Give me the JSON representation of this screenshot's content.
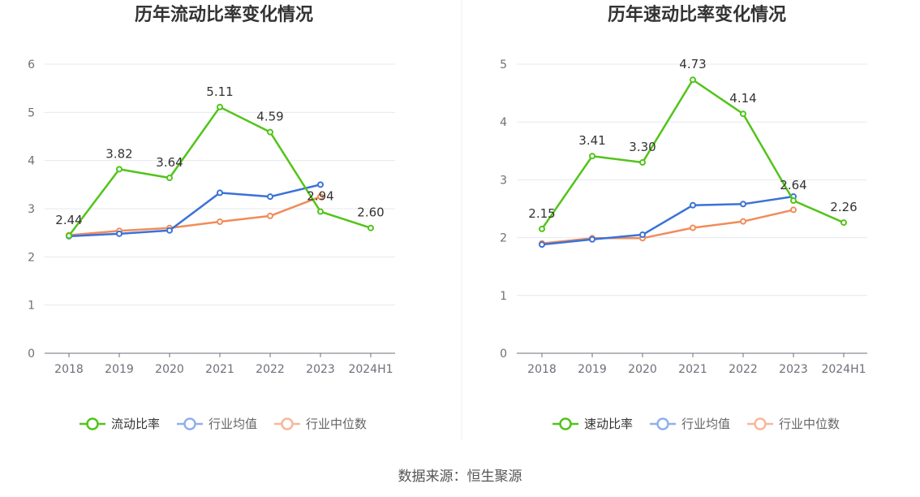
{
  "source": "数据来源：恒生聚源",
  "colors": {
    "primary": "#52c41a",
    "average": "#3a72d8",
    "median": "#f08c5a",
    "legend_average": "#8fb0ec",
    "legend_median": "#f7b79a"
  },
  "chart_data": [
    {
      "type": "line",
      "title": "历年流动比率变化情况",
      "categories": [
        "2018",
        "2019",
        "2020",
        "2021",
        "2022",
        "2023",
        "2024H1"
      ],
      "ylim": [
        0,
        6
      ],
      "yticks": [
        0,
        1,
        2,
        3,
        4,
        5,
        6
      ],
      "grid": true,
      "legend_position": "bottom",
      "series": [
        {
          "name": "流动比率",
          "values": [
            2.44,
            3.82,
            3.64,
            5.11,
            4.59,
            2.94,
            2.6
          ],
          "labels": [
            "2.44",
            "3.82",
            "3.64",
            "5.11",
            "4.59",
            "2.94",
            "2.60"
          ]
        },
        {
          "name": "行业均值",
          "values": [
            2.43,
            2.48,
            2.55,
            3.33,
            3.25,
            3.5,
            null
          ]
        },
        {
          "name": "行业中位数",
          "values": [
            2.45,
            2.54,
            2.6,
            2.73,
            2.85,
            3.25,
            null
          ]
        }
      ]
    },
    {
      "type": "line",
      "title": "历年速动比率变化情况",
      "categories": [
        "2018",
        "2019",
        "2020",
        "2021",
        "2022",
        "2023",
        "2024H1"
      ],
      "ylim": [
        0,
        5
      ],
      "yticks": [
        0,
        1,
        2,
        3,
        4,
        5
      ],
      "grid": true,
      "legend_position": "bottom",
      "series": [
        {
          "name": "速动比率",
          "values": [
            2.15,
            3.41,
            3.3,
            4.73,
            4.14,
            2.64,
            2.26
          ],
          "labels": [
            "2.15",
            "3.41",
            "3.30",
            "4.73",
            "4.14",
            "2.64",
            "2.26"
          ]
        },
        {
          "name": "行业均值",
          "values": [
            1.88,
            1.97,
            2.05,
            2.56,
            2.58,
            2.71,
            null
          ]
        },
        {
          "name": "行业中位数",
          "values": [
            1.9,
            1.99,
            1.99,
            2.17,
            2.28,
            2.48,
            null
          ]
        }
      ]
    }
  ]
}
